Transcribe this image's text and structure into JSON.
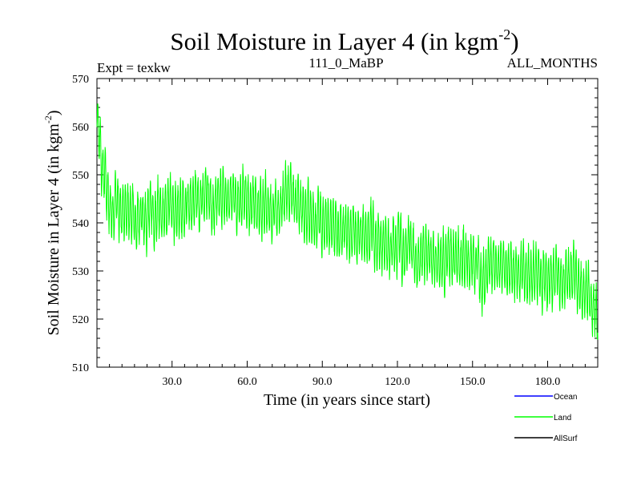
{
  "chart_data": {
    "type": "line",
    "title": "Soil Moisture in Layer 4 (in kgm",
    "title_exponent": "-2",
    "title_suffix": ")",
    "subtitle_left": "Expt = texkw",
    "subtitle_center": "111_0_MaBP",
    "subtitle_right": "ALL_MONTHS",
    "xlabel": "Time (in years since start)",
    "ylabel": "Soil Moisture in Layer 4 (in kgm",
    "ylabel_exponent": "-2",
    "ylabel_suffix": ")",
    "xlim": [
      0,
      200
    ],
    "ylim": [
      510,
      570
    ],
    "x_ticks": [
      30,
      60,
      90,
      120,
      150,
      180
    ],
    "x_tick_labels": [
      "30.0",
      "60.0",
      "90.0",
      "120.0",
      "150.0",
      "180.0"
    ],
    "y_ticks": [
      510,
      520,
      530,
      540,
      550,
      560,
      570
    ],
    "y_tick_labels": [
      "510",
      "520",
      "530",
      "540",
      "550",
      "560",
      "570"
    ],
    "series": [
      {
        "name": "Land",
        "color": "#00ff00",
        "samples_per_year": 12,
        "annual_mean": [
          {
            "x": 0,
            "y": 563
          },
          {
            "x": 2,
            "y": 553
          },
          {
            "x": 5,
            "y": 545
          },
          {
            "x": 10,
            "y": 543
          },
          {
            "x": 20,
            "y": 542
          },
          {
            "x": 30,
            "y": 543
          },
          {
            "x": 40,
            "y": 544
          },
          {
            "x": 50,
            "y": 546
          },
          {
            "x": 60,
            "y": 544
          },
          {
            "x": 70,
            "y": 543
          },
          {
            "x": 76,
            "y": 546
          },
          {
            "x": 80,
            "y": 544
          },
          {
            "x": 90,
            "y": 540
          },
          {
            "x": 100,
            "y": 539
          },
          {
            "x": 110,
            "y": 537
          },
          {
            "x": 120,
            "y": 535
          },
          {
            "x": 130,
            "y": 534
          },
          {
            "x": 140,
            "y": 532
          },
          {
            "x": 150,
            "y": 532
          },
          {
            "x": 160,
            "y": 531
          },
          {
            "x": 170,
            "y": 530
          },
          {
            "x": 180,
            "y": 529
          },
          {
            "x": 190,
            "y": 528
          },
          {
            "x": 195,
            "y": 526
          },
          {
            "x": 200,
            "y": 522
          }
        ],
        "seasonal_half_range": 5.5,
        "min_value": 512,
        "max_value": 566
      },
      {
        "name": "Ocean",
        "color": "#0000ff",
        "values": []
      },
      {
        "name": "AllSurf",
        "color": "#000000",
        "values": []
      }
    ],
    "legend_placement": "bottom-right",
    "legend": [
      {
        "label": "Ocean",
        "color": "#0000ff"
      },
      {
        "label": "Land",
        "color": "#00ff00"
      },
      {
        "label": "AllSurf",
        "color": "#000000"
      }
    ]
  }
}
